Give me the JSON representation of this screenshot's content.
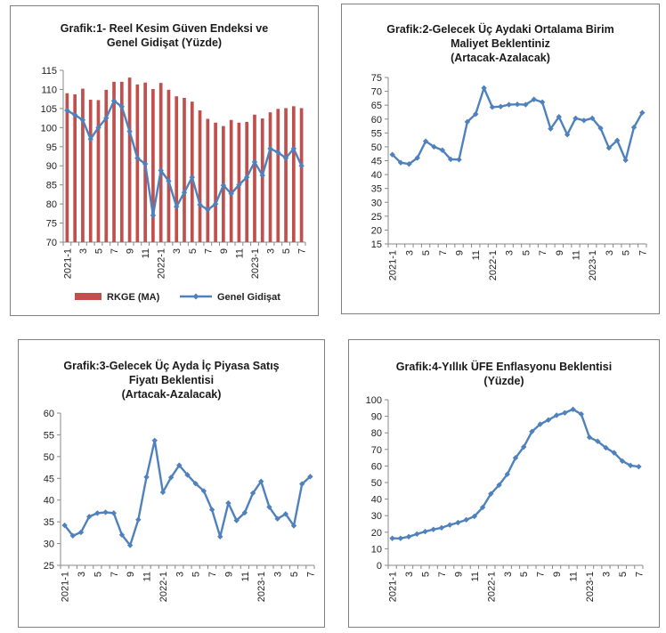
{
  "chart_data": [
    {
      "id": "g1",
      "type": "bar+line",
      "title_lines": [
        "Grafik:1- Reel Kesim Güven Endeksi ve",
        "Genel Gidişat (Yüzde)"
      ],
      "ylim": [
        70,
        115
      ],
      "yticks": [
        70,
        75,
        80,
        85,
        90,
        95,
        100,
        105,
        110,
        115
      ],
      "categories": [
        "2021-1",
        "2",
        "3",
        "4",
        "5",
        "6",
        "7",
        "8",
        "9",
        "10",
        "11",
        "12",
        "2022-1",
        "2",
        "3",
        "4",
        "5",
        "6",
        "7",
        "8",
        "9",
        "10",
        "11",
        "12",
        "2023-1",
        "2",
        "3",
        "4",
        "5",
        "6",
        "7"
      ],
      "xtick_labels": [
        "2021-1",
        "3",
        "5",
        "7",
        "9",
        "11",
        "2022-1",
        "3",
        "5",
        "7",
        "9",
        "11",
        "2023-1",
        "3",
        "5",
        "7"
      ],
      "series": [
        {
          "name": "RKGE (MA)",
          "type": "bar",
          "color": "#c0504d",
          "values": [
            109,
            108.7,
            110.2,
            107.3,
            107.2,
            109.9,
            112,
            112,
            113.1,
            111.3,
            111.8,
            110.1,
            111.7,
            109.9,
            108.2,
            107.8,
            106.8,
            104.5,
            102.3,
            101.3,
            100.4,
            102,
            101.3,
            101.5,
            103.4,
            102.4,
            104,
            104.9,
            105.1,
            105.6,
            105.1
          ]
        },
        {
          "name": "Genel Gidişat",
          "type": "line",
          "color": "#4f81bd",
          "values": [
            104.5,
            103.3,
            102,
            97,
            100,
            102.5,
            107,
            105.5,
            99,
            92,
            90.5,
            77,
            88.8,
            86,
            79.3,
            83,
            87,
            79.8,
            78.5,
            80,
            84.9,
            82.7,
            85,
            87,
            91,
            87.5,
            94.5,
            93.5,
            92,
            94.5,
            90
          ]
        }
      ]
    },
    {
      "id": "g2",
      "type": "line",
      "title_lines": [
        "Grafik:2-Gelecek Üç Aydaki Ortalama Birim",
        "Maliyet Beklentiniz",
        "(Artacak-Azalacak)"
      ],
      "ylim": [
        15,
        75
      ],
      "yticks": [
        15,
        20,
        25,
        30,
        35,
        40,
        45,
        50,
        55,
        60,
        65,
        70,
        75
      ],
      "categories": [
        "2021-1",
        "2",
        "3",
        "4",
        "5",
        "6",
        "7",
        "8",
        "9",
        "10",
        "11",
        "12",
        "2022-1",
        "2",
        "3",
        "4",
        "5",
        "6",
        "7",
        "8",
        "9",
        "10",
        "11",
        "12",
        "2023-1",
        "2",
        "3",
        "4",
        "5",
        "6",
        "7"
      ],
      "xtick_labels": [
        "2021-1",
        "3",
        "5",
        "7",
        "9",
        "11",
        "2022-1",
        "3",
        "5",
        "7",
        "9",
        "11",
        "2023-1",
        "3",
        "5",
        "7"
      ],
      "series": [
        {
          "color": "#4f81bd",
          "values": [
            47.2,
            44.3,
            43.8,
            46,
            52,
            50,
            48.8,
            45.5,
            45.4,
            59,
            61.8,
            71.2,
            64.3,
            64.5,
            65.2,
            65.3,
            65.2,
            67.1,
            66.1,
            56.5,
            60.8,
            54.4,
            60.3,
            59.5,
            60.3,
            56.7,
            49.6,
            52.3,
            45.2,
            57,
            62.3
          ]
        }
      ]
    },
    {
      "id": "g3",
      "type": "line",
      "title_lines": [
        "Grafik:3-Gelecek Üç Ayda İç Piyasa Satış",
        "Fiyatı Beklentisi",
        "(Artacak-Azalacak)"
      ],
      "ylim": [
        25,
        60
      ],
      "yticks": [
        25,
        30,
        35,
        40,
        45,
        50,
        55,
        60
      ],
      "categories": [
        "2021-1",
        "2",
        "3",
        "4",
        "5",
        "6",
        "7",
        "8",
        "9",
        "10",
        "11",
        "12",
        "2022-1",
        "2",
        "3",
        "4",
        "5",
        "6",
        "7",
        "8",
        "9",
        "10",
        "11",
        "12",
        "2023-1",
        "2",
        "3",
        "4",
        "5",
        "6",
        "7"
      ],
      "xtick_labels": [
        "2021-1",
        "3",
        "5",
        "7",
        "9",
        "11",
        "2022-1",
        "3",
        "5",
        "7",
        "9",
        "11",
        "2023-1",
        "3",
        "5",
        "7"
      ],
      "series": [
        {
          "color": "#4f81bd",
          "values": [
            34.2,
            31.8,
            32.6,
            36.2,
            37,
            37.2,
            37,
            32,
            29.6,
            35.5,
            45.3,
            53.7,
            41.8,
            45.2,
            48,
            45.8,
            43.8,
            42.1,
            37.8,
            31.6,
            39.3,
            35.3,
            37.1,
            41.6,
            44.3,
            38.4,
            35.7,
            36.8,
            34.1,
            43.7,
            45.4
          ]
        }
      ]
    },
    {
      "id": "g4",
      "type": "line",
      "title_lines": [
        "Grafik:4-Yıllık ÜFE Enflasyonu Beklentisi",
        "(Yüzde)"
      ],
      "ylim": [
        0,
        100
      ],
      "yticks": [
        0,
        10,
        20,
        30,
        40,
        50,
        60,
        70,
        80,
        90,
        100
      ],
      "categories": [
        "2021-1",
        "2",
        "3",
        "4",
        "5",
        "6",
        "7",
        "8",
        "9",
        "10",
        "11",
        "12",
        "2022-1",
        "2",
        "3",
        "4",
        "5",
        "6",
        "7",
        "8",
        "9",
        "10",
        "11",
        "12",
        "2023-1",
        "2",
        "3",
        "4",
        "5",
        "6",
        "7"
      ],
      "xtick_labels": [
        "2021-1",
        "3",
        "5",
        "7",
        "9",
        "11",
        "2022-1",
        "3",
        "5",
        "7",
        "9",
        "11",
        "2023-1",
        "3",
        "5",
        "7"
      ],
      "series": [
        {
          "color": "#4f81bd",
          "values": [
            16.3,
            16.3,
            17.3,
            18.9,
            20.4,
            21.7,
            22.7,
            24.4,
            25.8,
            27.5,
            29.6,
            35,
            43.2,
            48.5,
            55,
            64.9,
            71.5,
            80.8,
            85.2,
            87.8,
            90.6,
            92.1,
            94.2,
            91.3,
            77.3,
            74.9,
            71,
            68,
            63,
            60.3,
            59.6
          ]
        }
      ]
    }
  ]
}
